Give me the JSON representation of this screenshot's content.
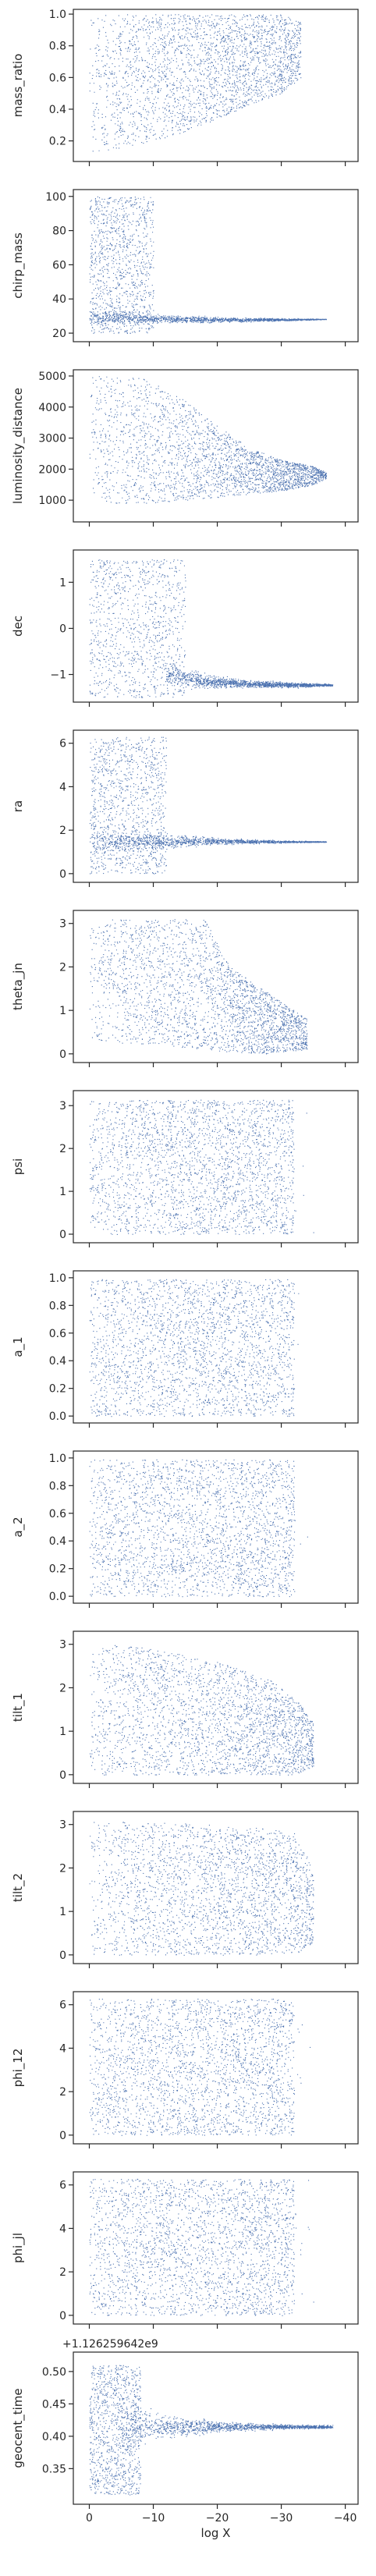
{
  "chart_data": {
    "type": "scatter",
    "point_color": "#4c72b0",
    "x_axis": {
      "label": "log X",
      "range": [
        2.5,
        -42
      ],
      "ticks": [
        0,
        -10,
        -20,
        -30,
        -40
      ],
      "tick_labels": [
        "0",
        "−10",
        "−20",
        "−30",
        "−40"
      ]
    },
    "panels": [
      {
        "ylabel": "mass_ratio",
        "ylim": [
          0.07,
          1.03
        ],
        "yticks": [
          0.2,
          0.4,
          0.6,
          0.8,
          1.0
        ],
        "ytick_labels": [
          "0.2",
          "0.4",
          "0.6",
          "0.8",
          "1.0"
        ],
        "offset_label": "",
        "x_extent": [
          0,
          -33
        ],
        "shape": "wedge",
        "envelope": [
          [
            0,
            0.12,
            1.0
          ],
          [
            -5,
            0.14,
            1.0
          ],
          [
            -10,
            0.2,
            1.0
          ],
          [
            -15,
            0.26,
            1.0
          ],
          [
            -20,
            0.34,
            1.0
          ],
          [
            -25,
            0.43,
            1.0
          ],
          [
            -30,
            0.5,
            1.0
          ],
          [
            -33,
            0.6,
            0.95
          ]
        ]
      },
      {
        "ylabel": "chirp_mass",
        "ylim": [
          15,
          104
        ],
        "yticks": [
          20,
          40,
          60,
          80,
          100
        ],
        "ytick_labels": [
          "20",
          "40",
          "60",
          "80",
          "100"
        ],
        "offset_label": "",
        "x_extent": [
          0,
          -37
        ],
        "shape": "spike",
        "blob": {
          "x": [
            0,
            -10
          ],
          "y": [
            20,
            100
          ]
        },
        "core": [
          [
            0,
            24,
            36
          ],
          [
            -10,
            25,
            32
          ],
          [
            -20,
            26,
            30
          ],
          [
            -30,
            27,
            29
          ],
          [
            -37,
            28,
            28.5
          ]
        ]
      },
      {
        "ylabel": "luminosity_distance",
        "ylim": [
          300,
          5200
        ],
        "yticks": [
          1000,
          2000,
          3000,
          4000,
          5000
        ],
        "ytick_labels": [
          "1000",
          "2000",
          "3000",
          "4000",
          "5000"
        ],
        "offset_label": "",
        "x_extent": [
          0,
          -37
        ],
        "shape": "band",
        "envelope": [
          [
            0,
            800,
            5000
          ],
          [
            -8,
            900,
            5000
          ],
          [
            -15,
            1000,
            4200
          ],
          [
            -20,
            1100,
            3400
          ],
          [
            -25,
            1200,
            2700
          ],
          [
            -30,
            1300,
            2300
          ],
          [
            -35,
            1500,
            2100
          ],
          [
            -37,
            1700,
            1900
          ]
        ]
      },
      {
        "ylabel": "dec",
        "ylim": [
          -1.6,
          1.7
        ],
        "yticks": [
          -1,
          0,
          1
        ],
        "ytick_labels": [
          "−1",
          "0",
          "1"
        ],
        "offset_label": "",
        "x_extent": [
          0,
          -38
        ],
        "shape": "spike",
        "blob": {
          "x": [
            0,
            -15
          ],
          "y": [
            -1.5,
            1.5
          ]
        },
        "core": [
          [
            -12,
            -1.35,
            -0.6
          ],
          [
            -18,
            -1.35,
            -0.95
          ],
          [
            -25,
            -1.3,
            -1.1
          ],
          [
            -32,
            -1.3,
            -1.15
          ],
          [
            -38,
            -1.25,
            -1.2
          ]
        ]
      },
      {
        "ylabel": "ra",
        "ylim": [
          -0.4,
          6.6
        ],
        "yticks": [
          0,
          2,
          4,
          6
        ],
        "ytick_labels": [
          "0",
          "2",
          "4",
          "6"
        ],
        "offset_label": "",
        "x_extent": [
          0,
          -37
        ],
        "shape": "spike",
        "blob": {
          "x": [
            0,
            -12
          ],
          "y": [
            0,
            6.3
          ]
        },
        "core": [
          [
            0,
            0.6,
            2.4
          ],
          [
            -10,
            1.0,
            2.0
          ],
          [
            -20,
            1.3,
            1.7
          ],
          [
            -30,
            1.4,
            1.55
          ],
          [
            -37,
            1.45,
            1.5
          ]
        ]
      },
      {
        "ylabel": "theta_jn",
        "ylim": [
          -0.2,
          3.3
        ],
        "yticks": [
          0,
          1,
          2,
          3
        ],
        "ytick_labels": [
          "0",
          "1",
          "2",
          "3"
        ],
        "offset_label": "",
        "x_extent": [
          0,
          -34
        ],
        "shape": "band",
        "envelope": [
          [
            0,
            0.3,
            3.1
          ],
          [
            -10,
            0.2,
            3.1
          ],
          [
            -18,
            0.1,
            3.1
          ],
          [
            -22,
            0.05,
            2.0
          ],
          [
            -28,
            0.0,
            1.4
          ],
          [
            -34,
            0.1,
            0.8
          ]
        ]
      },
      {
        "ylabel": "psi",
        "ylim": [
          -0.2,
          3.35
        ],
        "yticks": [
          0,
          1,
          2,
          3
        ],
        "ytick_labels": [
          "0",
          "1",
          "2",
          "3"
        ],
        "offset_label": "",
        "x_extent": [
          0,
          -32
        ],
        "shape": "uniform",
        "y_extent": [
          0,
          3.14
        ]
      },
      {
        "ylabel": "a_1",
        "ylim": [
          -0.05,
          1.05
        ],
        "yticks": [
          0.0,
          0.2,
          0.4,
          0.6,
          0.8,
          1.0
        ],
        "ytick_labels": [
          "0.0",
          "0.2",
          "0.4",
          "0.6",
          "0.8",
          "1.0"
        ],
        "offset_label": "",
        "x_extent": [
          0,
          -32
        ],
        "shape": "uniform",
        "y_extent": [
          0,
          0.99
        ]
      },
      {
        "ylabel": "a_2",
        "ylim": [
          -0.05,
          1.05
        ],
        "yticks": [
          0.0,
          0.2,
          0.4,
          0.6,
          0.8,
          1.0
        ],
        "ytick_labels": [
          "0.0",
          "0.2",
          "0.4",
          "0.6",
          "0.8",
          "1.0"
        ],
        "offset_label": "",
        "x_extent": [
          0,
          -32
        ],
        "shape": "uniform",
        "y_extent": [
          0,
          0.99
        ]
      },
      {
        "ylabel": "tilt_1",
        "ylim": [
          -0.2,
          3.3
        ],
        "yticks": [
          0,
          1,
          2,
          3
        ],
        "ytick_labels": [
          "0",
          "1",
          "2",
          "3"
        ],
        "offset_label": "",
        "x_extent": [
          0,
          -35
        ],
        "shape": "band",
        "envelope": [
          [
            0,
            0.0,
            3.05
          ],
          [
            -10,
            0.0,
            2.9
          ],
          [
            -20,
            0.0,
            2.6
          ],
          [
            -28,
            0.0,
            2.2
          ],
          [
            -32,
            0.0,
            1.8
          ],
          [
            -35,
            0.2,
            1.2
          ]
        ]
      },
      {
        "ylabel": "tilt_2",
        "ylim": [
          -0.2,
          3.3
        ],
        "yticks": [
          0,
          1,
          2,
          3
        ],
        "ytick_labels": [
          "0",
          "1",
          "2",
          "3"
        ],
        "offset_label": "",
        "x_extent": [
          0,
          -35
        ],
        "shape": "band",
        "envelope": [
          [
            0,
            0.0,
            3.1
          ],
          [
            -10,
            0.0,
            3.05
          ],
          [
            -20,
            0.0,
            3.0
          ],
          [
            -28,
            0.0,
            2.9
          ],
          [
            -32,
            0.0,
            2.8
          ],
          [
            -35,
            0.3,
            2.0
          ]
        ]
      },
      {
        "ylabel": "phi_12",
        "ylim": [
          -0.4,
          6.6
        ],
        "yticks": [
          0,
          2,
          4,
          6
        ],
        "ytick_labels": [
          "0",
          "2",
          "4",
          "6"
        ],
        "offset_label": "",
        "x_extent": [
          0,
          -32
        ],
        "shape": "uniform",
        "y_extent": [
          0,
          6.28
        ]
      },
      {
        "ylabel": "phi_jl",
        "ylim": [
          -0.4,
          6.6
        ],
        "yticks": [
          0,
          2,
          4,
          6
        ],
        "ytick_labels": [
          "0",
          "2",
          "4",
          "6"
        ],
        "offset_label": "",
        "x_extent": [
          0,
          -32
        ],
        "shape": "uniform",
        "y_extent": [
          0,
          6.28
        ]
      },
      {
        "ylabel": "geocent_time",
        "ylim": [
          0.295,
          0.53
        ],
        "yticks": [
          0.35,
          0.4,
          0.45,
          0.5
        ],
        "ytick_labels": [
          "0.35",
          "0.40",
          "0.45",
          "0.50"
        ],
        "offset_label": "+1.126259642e9",
        "x_extent": [
          0,
          -38
        ],
        "shape": "spike",
        "blob": {
          "x": [
            0,
            -8
          ],
          "y": [
            0.31,
            0.51
          ]
        },
        "core": [
          [
            -5,
            0.37,
            0.46
          ],
          [
            -12,
            0.39,
            0.44
          ],
          [
            -20,
            0.405,
            0.425
          ],
          [
            -30,
            0.41,
            0.42
          ],
          [
            -38,
            0.412,
            0.418
          ]
        ]
      }
    ]
  }
}
